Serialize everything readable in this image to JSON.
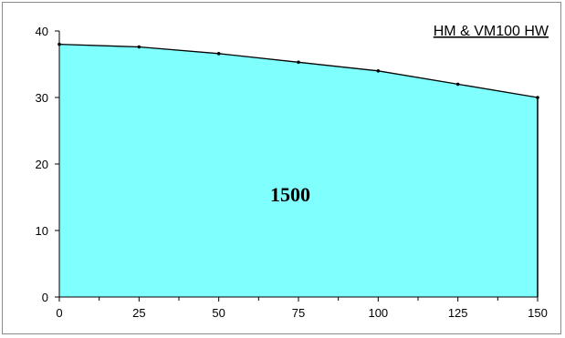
{
  "chart_data": {
    "type": "area",
    "title": "HM & VM100 HW",
    "area_label": "1500",
    "xlabel": "",
    "ylabel": "",
    "x": [
      0,
      25,
      50,
      75,
      100,
      125,
      150
    ],
    "values": [
      38,
      37.6,
      36.6,
      35.3,
      34.0,
      32.0,
      30.0
    ],
    "xlim": [
      0,
      150
    ],
    "ylim": [
      0,
      40
    ],
    "x_ticks": [
      0,
      25,
      50,
      75,
      100,
      125,
      150
    ],
    "y_ticks": [
      0,
      10,
      20,
      30,
      40
    ],
    "fill_color": "#80ffff",
    "line_color": "#000000",
    "grid": false,
    "legend": "none"
  }
}
